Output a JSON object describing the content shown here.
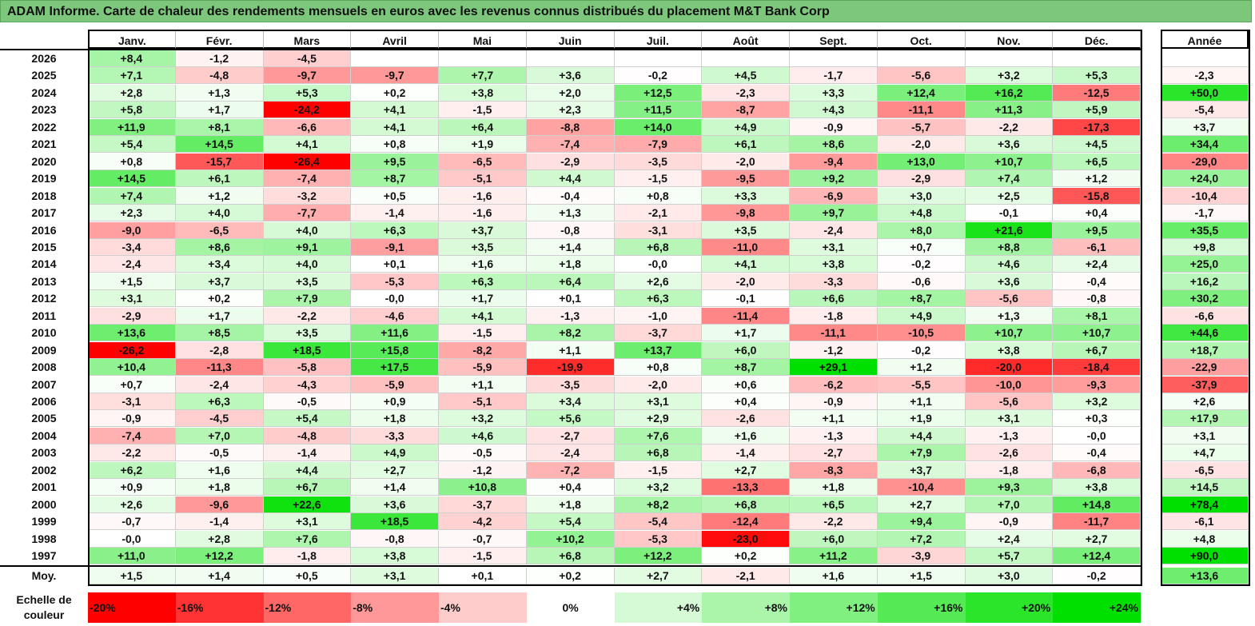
{
  "title": "ADAM Informe. Carte de chaleur des rendements mensuels en euros avec les revenus connus distribués du placement M&T Bank Corp",
  "chart_data": {
    "type": "heatmap",
    "title": "ADAM Informe. Carte de chaleur des rendements mensuels en euros avec les revenus connus distribués du placement M&T Bank Corp",
    "columns": [
      "Janv.",
      "Févr.",
      "Mars",
      "Avril",
      "Mai",
      "Juin",
      "Juil.",
      "Août",
      "Sept.",
      "Oct.",
      "Nov.",
      "Déc."
    ],
    "year_column": "Année",
    "average_label": "Moy.",
    "rows": [
      {
        "year": "2026",
        "values": [
          "+8,4",
          "-1,2",
          "-4,5",
          "",
          "",
          "",
          "",
          "",
          "",
          "",
          "",
          ""
        ],
        "total": ""
      },
      {
        "year": "2025",
        "values": [
          "+7,1",
          "-4,8",
          "-9,7",
          "-9,7",
          "+7,7",
          "+3,6",
          "-0,2",
          "+4,5",
          "-1,7",
          "-5,6",
          "+3,2",
          "+5,3"
        ],
        "total": "-2,3"
      },
      {
        "year": "2024",
        "values": [
          "+2,8",
          "+1,3",
          "+5,3",
          "+0,2",
          "+3,8",
          "+2,0",
          "+12,5",
          "-2,3",
          "+3,3",
          "+12,4",
          "+16,2",
          "-12,5"
        ],
        "total": "+50,0"
      },
      {
        "year": "2023",
        "values": [
          "+5,8",
          "+1,7",
          "-24,2",
          "+4,1",
          "-1,5",
          "+2,3",
          "+11,5",
          "-8,7",
          "+4,3",
          "-11,1",
          "+11,3",
          "+5,9"
        ],
        "total": "-5,4"
      },
      {
        "year": "2022",
        "values": [
          "+11,9",
          "+8,1",
          "-6,6",
          "+4,1",
          "+6,4",
          "-8,8",
          "+14,0",
          "+4,9",
          "-0,9",
          "-5,7",
          "-2,2",
          "-17,3"
        ],
        "total": "+3,7"
      },
      {
        "year": "2021",
        "values": [
          "+5,4",
          "+14,5",
          "+4,1",
          "+0,8",
          "+1,9",
          "-7,4",
          "-7,9",
          "+6,1",
          "+8,6",
          "-2,0",
          "+3,6",
          "+4,5"
        ],
        "total": "+34,4"
      },
      {
        "year": "2020",
        "values": [
          "+0,8",
          "-15,7",
          "-26,4",
          "+9,5",
          "-6,5",
          "-2,9",
          "-3,5",
          "-2,0",
          "-9,4",
          "+13,0",
          "+10,7",
          "+6,5"
        ],
        "total": "-29,0"
      },
      {
        "year": "2019",
        "values": [
          "+14,5",
          "+6,1",
          "-7,4",
          "+8,7",
          "-5,1",
          "+4,4",
          "-1,5",
          "-9,5",
          "+9,2",
          "-2,9",
          "+7,4",
          "+1,2"
        ],
        "total": "+24,0"
      },
      {
        "year": "2018",
        "values": [
          "+7,4",
          "+1,2",
          "-3,2",
          "+0,5",
          "-1,6",
          "-0,4",
          "+0,8",
          "+3,3",
          "-6,9",
          "+3,0",
          "+2,5",
          "-15,8"
        ],
        "total": "-10,4"
      },
      {
        "year": "2017",
        "values": [
          "+2,3",
          "+4,0",
          "-7,7",
          "-1,4",
          "-1,6",
          "+1,3",
          "-2,1",
          "-9,8",
          "+9,7",
          "+4,8",
          "-0,1",
          "+0,4"
        ],
        "total": "-1,7"
      },
      {
        "year": "2016",
        "values": [
          "-9,0",
          "-6,5",
          "+4,0",
          "+6,3",
          "+3,7",
          "-0,8",
          "-3,1",
          "+3,5",
          "-2,4",
          "+8,0",
          "+21,6",
          "+9,5"
        ],
        "total": "+35,5"
      },
      {
        "year": "2015",
        "values": [
          "-3,4",
          "+8,6",
          "+9,1",
          "-9,1",
          "+3,5",
          "+1,4",
          "+6,8",
          "-11,0",
          "+3,1",
          "+0,7",
          "+8,8",
          "-6,1"
        ],
        "total": "+9,8"
      },
      {
        "year": "2014",
        "values": [
          "-2,4",
          "+3,4",
          "+4,0",
          "+0,1",
          "+1,6",
          "+1,8",
          "-0,0",
          "+4,1",
          "+3,8",
          "-0,2",
          "+4,6",
          "+2,4"
        ],
        "total": "+25,0"
      },
      {
        "year": "2013",
        "values": [
          "+1,5",
          "+3,7",
          "+3,5",
          "-5,3",
          "+6,3",
          "+6,4",
          "+2,6",
          "-2,0",
          "-3,3",
          "-0,6",
          "+3,6",
          "-0,4"
        ],
        "total": "+16,2"
      },
      {
        "year": "2012",
        "values": [
          "+3,1",
          "+0,2",
          "+7,9",
          "-0,0",
          "+1,7",
          "+0,1",
          "+6,3",
          "-0,1",
          "+6,6",
          "+8,7",
          "-5,6",
          "-0,8"
        ],
        "total": "+30,2"
      },
      {
        "year": "2011",
        "values": [
          "-2,9",
          "+1,7",
          "-2,2",
          "-4,6",
          "+4,1",
          "-1,3",
          "-1,0",
          "-11,4",
          "-1,8",
          "+4,9",
          "+1,3",
          "+8,1"
        ],
        "total": "-6,6"
      },
      {
        "year": "2010",
        "values": [
          "+13,6",
          "+8,5",
          "+3,5",
          "+11,6",
          "-1,5",
          "+8,2",
          "-3,7",
          "+1,7",
          "-11,1",
          "-10,5",
          "+10,7",
          "+10,7"
        ],
        "total": "+44,6"
      },
      {
        "year": "2009",
        "values": [
          "-26,2",
          "-2,8",
          "+18,5",
          "+15,8",
          "-8,2",
          "+1,1",
          "+13,7",
          "+6,0",
          "-1,2",
          "-0,2",
          "+3,8",
          "+6,7"
        ],
        "total": "+18,7"
      },
      {
        "year": "2008",
        "values": [
          "+10,4",
          "-11,3",
          "-5,8",
          "+17,5",
          "-5,9",
          "-19,9",
          "+0,8",
          "+8,7",
          "+29,1",
          "+1,2",
          "-20,0",
          "-18,4"
        ],
        "total": "-22,9"
      },
      {
        "year": "2007",
        "values": [
          "+0,7",
          "-2,4",
          "-4,3",
          "-5,9",
          "+1,1",
          "-3,5",
          "-2,0",
          "+0,6",
          "-6,2",
          "-5,5",
          "-10,0",
          "-9,3"
        ],
        "total": "-37,9"
      },
      {
        "year": "2006",
        "values": [
          "-3,1",
          "+6,3",
          "-0,5",
          "+0,9",
          "-5,1",
          "+3,4",
          "+3,1",
          "+0,4",
          "-0,9",
          "+1,1",
          "-5,6",
          "+3,2"
        ],
        "total": "+2,6"
      },
      {
        "year": "2005",
        "values": [
          "-0,9",
          "-4,5",
          "+5,4",
          "+1,8",
          "+3,2",
          "+5,6",
          "+2,9",
          "-2,6",
          "+1,1",
          "+1,9",
          "+3,1",
          "+0,3"
        ],
        "total": "+17,9"
      },
      {
        "year": "2004",
        "values": [
          "-7,4",
          "+7,0",
          "-4,8",
          "-3,3",
          "+4,6",
          "-2,7",
          "+7,6",
          "+1,6",
          "-1,3",
          "+4,4",
          "-1,3",
          "-0,0"
        ],
        "total": "+3,1"
      },
      {
        "year": "2003",
        "values": [
          "-2,2",
          "-0,5",
          "-1,4",
          "+4,9",
          "-0,5",
          "-2,4",
          "+6,8",
          "-1,4",
          "-2,7",
          "+7,9",
          "-2,6",
          "-0,4"
        ],
        "total": "+4,7"
      },
      {
        "year": "2002",
        "values": [
          "+6,2",
          "+1,6",
          "+4,4",
          "+2,7",
          "-1,2",
          "-7,2",
          "-1,5",
          "+2,7",
          "-8,3",
          "+3,7",
          "-1,8",
          "-6,8"
        ],
        "total": "-6,5"
      },
      {
        "year": "2001",
        "values": [
          "+0,9",
          "+1,8",
          "+6,7",
          "+1,4",
          "+10,8",
          "+0,4",
          "+3,2",
          "-13,3",
          "+1,8",
          "-10,4",
          "+9,3",
          "+3,8"
        ],
        "total": "+14,5"
      },
      {
        "year": "2000",
        "values": [
          "+2,6",
          "-9,6",
          "+22,6",
          "+3,6",
          "-3,7",
          "+1,8",
          "+8,2",
          "+6,8",
          "+6,5",
          "+2,7",
          "+7,0",
          "+14,8"
        ],
        "total": "+78,4"
      },
      {
        "year": "1999",
        "values": [
          "-0,7",
          "-1,4",
          "+3,1",
          "+18,5",
          "-4,2",
          "+5,4",
          "-5,4",
          "-12,4",
          "-2,2",
          "+9,4",
          "-0,9",
          "-11,7"
        ],
        "total": "-6,1"
      },
      {
        "year": "1998",
        "values": [
          "-0,0",
          "+2,8",
          "+7,6",
          "-0,8",
          "-0,7",
          "+10,2",
          "-5,3",
          "-23,0",
          "+6,0",
          "+7,2",
          "+2,4",
          "+2,7"
        ],
        "total": "+4,8"
      },
      {
        "year": "1997",
        "values": [
          "+11,0",
          "+12,2",
          "-1,8",
          "+3,8",
          "-1,5",
          "+6,8",
          "+12,2",
          "+0,2",
          "+11,2",
          "-3,9",
          "+5,7",
          "+12,4"
        ],
        "total": "+90,0"
      }
    ],
    "averages": {
      "values": [
        "+1,5",
        "+1,4",
        "+0,5",
        "+3,1",
        "+0,1",
        "+0,2",
        "+2,7",
        "-2,1",
        "+1,6",
        "+1,5",
        "+3,0",
        "-0,2"
      ],
      "total": "+13,6"
    },
    "color_scale": {
      "label": "Echelle de couleur",
      "stops": [
        "-20%",
        "-16%",
        "-12%",
        "-8%",
        "-4%",
        "0%",
        "+4%",
        "+8%",
        "+12%",
        "+16%",
        "+20%",
        "+24%"
      ],
      "values": [
        -20,
        -16,
        -12,
        -8,
        -4,
        0,
        4,
        8,
        12,
        16,
        20,
        24
      ],
      "negative_color": "#ff0000",
      "neutral_color": "#ffffff",
      "positive_color": "#00e000"
    }
  }
}
